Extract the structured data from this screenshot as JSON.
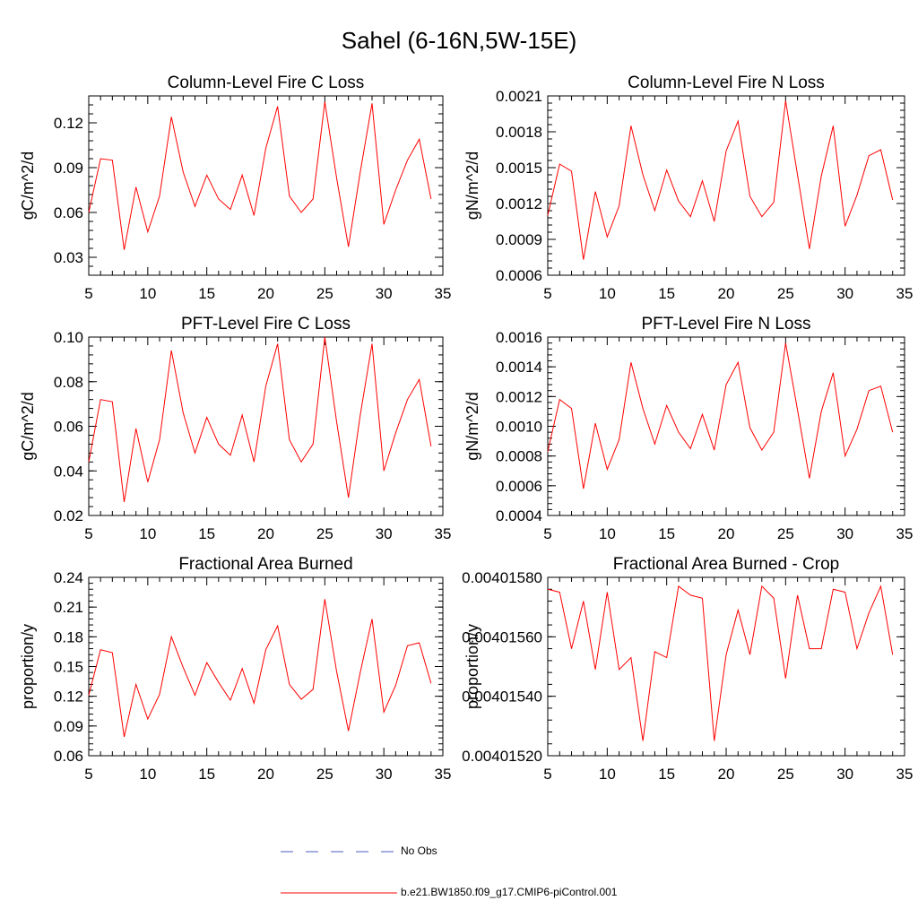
{
  "title": "Sahel (6-16N,5W-15E)",
  "legend": [
    {
      "label": "No Obs",
      "color": "#4b5dbf",
      "style": "dashed"
    },
    {
      "label": "b.e21.BW1850.f09_g17.CMIP6-piControl.001",
      "color": "#ff0000",
      "style": "solid"
    }
  ],
  "chart_data": [
    {
      "type": "line",
      "title": "Column-Level Fire C Loss",
      "xlabel": "",
      "ylabel": "gC/m^2/d",
      "xlim": [
        5,
        35
      ],
      "ylim": [
        0.018,
        0.138
      ],
      "xticks": [
        5,
        10,
        15,
        20,
        25,
        30,
        35
      ],
      "yticks": [
        "0.03",
        "0.06",
        "0.09",
        "0.12"
      ],
      "series": [
        {
          "name": "b.e21.BW1850.f09_g17.CMIP6-piControl.001",
          "x": [
            5,
            6,
            7,
            8,
            9,
            10,
            11,
            12,
            13,
            14,
            15,
            16,
            17,
            18,
            19,
            20,
            21,
            22,
            23,
            24,
            25,
            26,
            27,
            28,
            29,
            30,
            31,
            32,
            33,
            34
          ],
          "values": [
            0.06,
            0.096,
            0.095,
            0.035,
            0.077,
            0.047,
            0.071,
            0.124,
            0.087,
            0.064,
            0.085,
            0.069,
            0.062,
            0.085,
            0.058,
            0.103,
            0.131,
            0.071,
            0.06,
            0.069,
            0.134,
            0.083,
            0.037,
            0.087,
            0.133,
            0.052,
            0.075,
            0.095,
            0.109,
            0.069
          ]
        }
      ]
    },
    {
      "type": "line",
      "title": "Column-Level Fire N Loss",
      "xlabel": "",
      "ylabel": "gN/m^2/d",
      "xlim": [
        5,
        35
      ],
      "ylim": [
        0.0006,
        0.0021
      ],
      "xticks": [
        5,
        10,
        15,
        20,
        25,
        30,
        35
      ],
      "yticks": [
        "0.0006",
        "0.0009",
        "0.0012",
        "0.0015",
        "0.0018",
        "0.0021"
      ],
      "series": [
        {
          "name": "b.e21.BW1850.f09_g17.CMIP6-piControl.001",
          "x": [
            5,
            6,
            7,
            8,
            9,
            10,
            11,
            12,
            13,
            14,
            15,
            16,
            17,
            18,
            19,
            20,
            21,
            22,
            23,
            24,
            25,
            26,
            27,
            28,
            29,
            30,
            31,
            32,
            33,
            34
          ],
          "values": [
            0.0011,
            0.00153,
            0.00147,
            0.00073,
            0.0013,
            0.00092,
            0.00118,
            0.00185,
            0.00144,
            0.00114,
            0.00148,
            0.00122,
            0.00109,
            0.00139,
            0.00105,
            0.00164,
            0.00189,
            0.00126,
            0.00109,
            0.00121,
            0.00206,
            0.00144,
            0.00082,
            0.00143,
            0.00185,
            0.00101,
            0.00127,
            0.0016,
            0.00165,
            0.00123
          ]
        }
      ]
    },
    {
      "type": "line",
      "title": "PFT-Level Fire C Loss",
      "xlabel": "",
      "ylabel": "gC/m^2/d",
      "xlim": [
        5,
        35
      ],
      "ylim": [
        0.02,
        0.1
      ],
      "xticks": [
        5,
        10,
        15,
        20,
        25,
        30,
        35
      ],
      "yticks": [
        "0.02",
        "0.04",
        "0.06",
        "0.08",
        "0.10"
      ],
      "series": [
        {
          "name": "b.e21.BW1850.f09_g17.CMIP6-piControl.001",
          "x": [
            5,
            6,
            7,
            8,
            9,
            10,
            11,
            12,
            13,
            14,
            15,
            16,
            17,
            18,
            19,
            20,
            21,
            22,
            23,
            24,
            25,
            26,
            27,
            28,
            29,
            30,
            31,
            32,
            33,
            34
          ],
          "values": [
            0.044,
            0.072,
            0.071,
            0.026,
            0.059,
            0.035,
            0.054,
            0.094,
            0.066,
            0.048,
            0.064,
            0.052,
            0.047,
            0.065,
            0.044,
            0.078,
            0.097,
            0.054,
            0.044,
            0.052,
            0.1,
            0.062,
            0.028,
            0.065,
            0.097,
            0.04,
            0.057,
            0.072,
            0.081,
            0.051
          ]
        }
      ]
    },
    {
      "type": "line",
      "title": "PFT-Level Fire N Loss",
      "xlabel": "",
      "ylabel": "gN/m^2/d",
      "xlim": [
        5,
        35
      ],
      "ylim": [
        0.0004,
        0.0016
      ],
      "xticks": [
        5,
        10,
        15,
        20,
        25,
        30,
        35
      ],
      "yticks": [
        "0.0004",
        "0.0006",
        "0.0008",
        "0.0010",
        "0.0012",
        "0.0014",
        "0.0016"
      ],
      "series": [
        {
          "name": "b.e21.BW1850.f09_g17.CMIP6-piControl.001",
          "x": [
            5,
            6,
            7,
            8,
            9,
            10,
            11,
            12,
            13,
            14,
            15,
            16,
            17,
            18,
            19,
            20,
            21,
            22,
            23,
            24,
            25,
            26,
            27,
            28,
            29,
            30,
            31,
            32,
            33,
            34
          ],
          "values": [
            0.00083,
            0.00118,
            0.00112,
            0.00058,
            0.00102,
            0.00071,
            0.00091,
            0.00143,
            0.00112,
            0.00088,
            0.00114,
            0.00096,
            0.00085,
            0.00108,
            0.00084,
            0.00128,
            0.00143,
            0.00099,
            0.00084,
            0.00096,
            0.00156,
            0.00111,
            0.00065,
            0.0011,
            0.00136,
            0.0008,
            0.00098,
            0.00124,
            0.00127,
            0.00096
          ]
        }
      ]
    },
    {
      "type": "line",
      "title": "Fractional Area Burned",
      "xlabel": "",
      "ylabel": "proportion/y",
      "xlim": [
        5,
        35
      ],
      "ylim": [
        0.06,
        0.24
      ],
      "xticks": [
        5,
        10,
        15,
        20,
        25,
        30,
        35
      ],
      "yticks": [
        "0.06",
        "0.09",
        "0.12",
        "0.15",
        "0.18",
        "0.21",
        "0.24"
      ],
      "series": [
        {
          "name": "b.e21.BW1850.f09_g17.CMIP6-piControl.001",
          "x": [
            5,
            6,
            7,
            8,
            9,
            10,
            11,
            12,
            13,
            14,
            15,
            16,
            17,
            18,
            19,
            20,
            21,
            22,
            23,
            24,
            25,
            26,
            27,
            28,
            29,
            30,
            31,
            32,
            33,
            34
          ],
          "values": [
            0.121,
            0.167,
            0.164,
            0.079,
            0.132,
            0.097,
            0.122,
            0.18,
            0.149,
            0.121,
            0.154,
            0.134,
            0.116,
            0.148,
            0.113,
            0.167,
            0.191,
            0.132,
            0.117,
            0.127,
            0.218,
            0.145,
            0.085,
            0.144,
            0.198,
            0.104,
            0.131,
            0.171,
            0.174,
            0.133
          ]
        }
      ]
    },
    {
      "type": "line",
      "title": "Fractional Area Burned - Crop",
      "xlabel": "",
      "ylabel": "proportion/y",
      "xlim": [
        5,
        35
      ],
      "ylim": [
        0.0040152,
        0.0040158
      ],
      "xticks": [
        5,
        10,
        15,
        20,
        25,
        30,
        35
      ],
      "yticks": [
        "0.00401520",
        "0.00401540",
        "0.00401560",
        "0.00401580"
      ],
      "series": [
        {
          "name": "b.e21.BW1850.f09_g17.CMIP6-piControl.001",
          "x": [
            5,
            6,
            7,
            8,
            9,
            10,
            11,
            12,
            13,
            14,
            15,
            16,
            17,
            18,
            19,
            20,
            21,
            22,
            23,
            24,
            25,
            26,
            27,
            28,
            29,
            30,
            31,
            32,
            33,
            34
          ],
          "values": [
            0.00401576,
            0.00401575,
            0.00401556,
            0.00401572,
            0.00401549,
            0.00401575,
            0.00401549,
            0.00401553,
            0.00401525,
            0.00401555,
            0.00401553,
            0.00401577,
            0.00401574,
            0.00401573,
            0.00401525,
            0.00401554,
            0.00401569,
            0.00401554,
            0.00401577,
            0.00401573,
            0.00401546,
            0.00401574,
            0.00401556,
            0.00401556,
            0.00401576,
            0.00401575,
            0.00401556,
            0.00401568,
            0.00401577,
            0.00401554
          ]
        }
      ]
    }
  ]
}
